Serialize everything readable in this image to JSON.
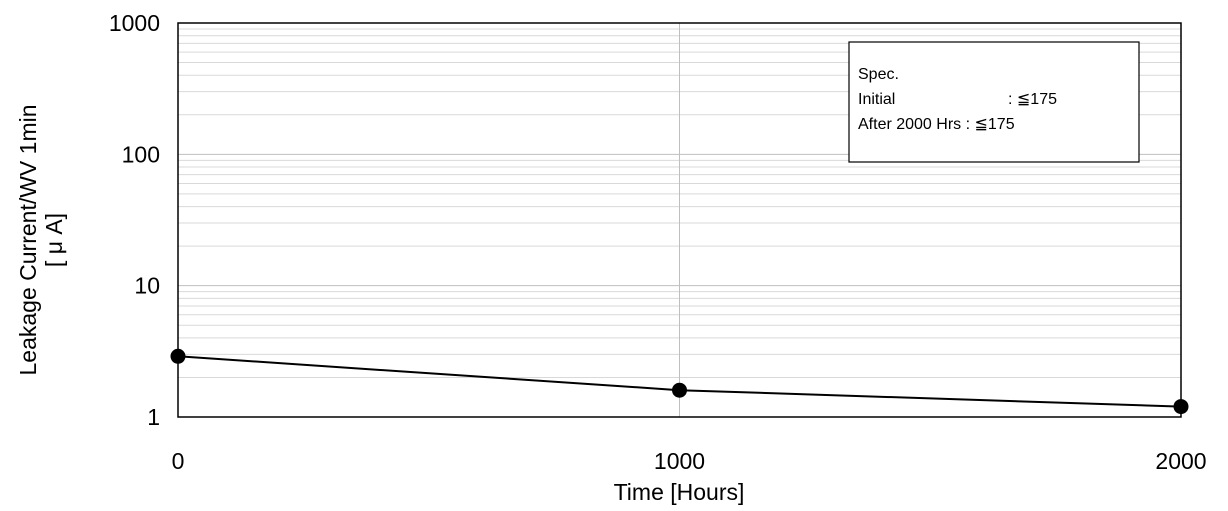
{
  "chart_data": {
    "type": "line",
    "xlabel": "Time [Hours]",
    "ylabel_lines": [
      "Leakage Current/WV 1min",
      "[ μ A]"
    ],
    "x_ticks": [
      "0",
      "1000",
      "2000"
    ],
    "y_ticks": [
      "1",
      "10",
      "100",
      "1000"
    ],
    "xlim": [
      0,
      2000
    ],
    "ylim": [
      1,
      1000
    ],
    "y_scale": "log",
    "grid": true,
    "series": [
      {
        "x": [
          0,
          1000,
          2000
        ],
        "y": [
          2.9,
          1.6,
          1.2
        ]
      }
    ],
    "spec_box": {
      "placement": "top-right",
      "lines": [
        "Spec.",
        "Initial",
        ": ≦175",
        "After 2000 Hrs : ≦175"
      ]
    },
    "colors": {
      "line": "#000000",
      "grid_minor": "#d9d9d9",
      "grid_major": "#bfbfbf"
    }
  }
}
